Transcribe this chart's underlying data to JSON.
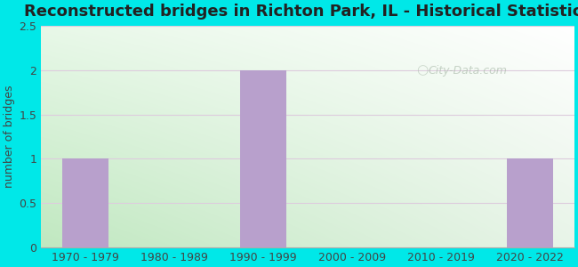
{
  "title": "Reconstructed bridges in Richton Park, IL - Historical Statistics",
  "categories": [
    "1970 - 1979",
    "1980 - 1989",
    "1990 - 1999",
    "2000 - 2009",
    "2010 - 2019",
    "2020 - 2022"
  ],
  "values": [
    1,
    0,
    2,
    0,
    0,
    1
  ],
  "bar_color": "#b8a0cc",
  "ylabel": "number of bridges",
  "ylim": [
    0,
    2.5
  ],
  "yticks": [
    0,
    0.5,
    1,
    1.5,
    2,
    2.5
  ],
  "title_fontsize": 13,
  "ylabel_fontsize": 9,
  "tick_fontsize": 9,
  "bg_outer": "#00e8e8",
  "grad_color_bottom_left": "#c8edc8",
  "grad_color_top_right": "#ffffff",
  "watermark_text": "City-Data.com",
  "grid_color": "#ddccdd",
  "title_color": "#222222",
  "tick_color": "#444444",
  "bar_width": 0.52
}
